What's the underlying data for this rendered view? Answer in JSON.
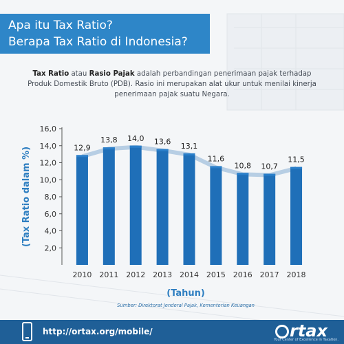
{
  "header": {
    "title_line1": "Apa itu Tax Ratio?",
    "title_line2": "Berapa Tax Ratio di Indonesia?"
  },
  "intro": {
    "term1": "Tax Ratio",
    "connector": " atau ",
    "term2": "Rasio Pajak",
    "rest": " adalah perbandingan penerimaan pajak terhadap Produk Domestik Bruto (PDB). Rasio ini merupakan alat ukur untuk menilai kinerja penerimaan pajak suatu Negara."
  },
  "chart_data": {
    "type": "bar",
    "categories": [
      "2010",
      "2011",
      "2012",
      "2013",
      "2014",
      "2015",
      "2016",
      "2017",
      "2018"
    ],
    "values": [
      12.9,
      13.8,
      14.0,
      13.6,
      13.1,
      11.6,
      10.8,
      10.7,
      11.5
    ],
    "value_labels": [
      "12,9",
      "13,8",
      "14,0",
      "13,6",
      "13,1",
      "11,6",
      "10,8",
      "10,7",
      "11,5"
    ],
    "xlabel": "(Tahun)",
    "ylabel": "(Tax Ratio dalam %)",
    "ylim": [
      0,
      16
    ],
    "yticks": [
      2,
      4,
      6,
      8,
      10,
      12,
      14,
      16
    ],
    "ytick_labels": [
      "2,0",
      "4,0",
      "6,0",
      "8,0",
      "10,0",
      "12,0",
      "14,0",
      "16,0"
    ],
    "bar_color": "#1f6fb8",
    "trend_color": "#a8c4df",
    "grid": false
  },
  "source": "Sumber: Direktorat Jenderal Pajak, Kementerian Keuangan",
  "footer": {
    "url": "http://ortax.org/mobile/",
    "brand": "rtax",
    "tagline": "Your Center of Excellence in Taxation."
  },
  "colors": {
    "title_bg": "#2e86c8",
    "footer_bg": "#1f5f97",
    "axis_text": "#333333",
    "ylabel_color": "#2f7fc1"
  }
}
